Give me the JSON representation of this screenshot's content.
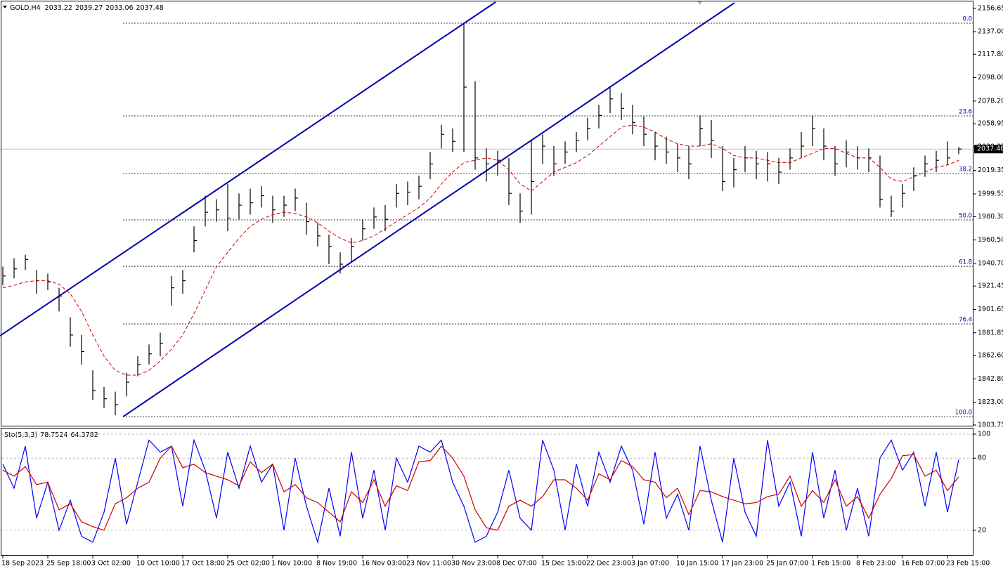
{
  "chart_data": [
    {
      "type": "ohlc",
      "symbol": "GOLD,H4",
      "open": 2033.22,
      "categories": [
        "18 Sep 2023",
        null,
        null,
        null,
        "25 Sep 18:00",
        null,
        null,
        null,
        "3 Oct 02:00",
        null,
        null,
        null,
        "10 Oct 10:00",
        null,
        null,
        null,
        "17 Oct 18:00",
        null,
        null,
        null,
        "25 Oct 02:00",
        null,
        null,
        null,
        "1 Nov 10:00",
        null,
        null,
        null,
        "8 Nov 19:00",
        null,
        null,
        null,
        "16 Nov 03:00",
        null,
        null,
        null,
        "23 Nov 11:00",
        null,
        null,
        null,
        "30 Nov 23:00",
        null,
        null,
        null,
        "8 Dec 07:00",
        null,
        null,
        null,
        "15 Dec 15:00",
        null,
        null,
        null,
        "22 Dec 23:00",
        null,
        null,
        null,
        "3 Jan 07:00",
        null,
        null,
        null,
        "10 Jan 15:00",
        null,
        null,
        null,
        "17 Jan 23:00",
        null,
        null,
        null,
        "25 Jan 07:00",
        null,
        null,
        null,
        "1 Feb 15:00",
        null,
        null,
        null,
        "8 Feb 23:00",
        null,
        null,
        null,
        "16 Feb 07:00",
        null,
        null,
        null,
        "23 Feb 15:00",
        null
      ],
      "high": [
        1938,
        1945,
        1948,
        1935,
        1932,
        1920,
        1895,
        1880,
        1850,
        1836,
        1832,
        1848,
        1862,
        1872,
        1882,
        1930,
        1935,
        1972,
        1998,
        1995,
        2008,
        2000,
        2004,
        2006,
        1998,
        1998,
        2004,
        1992,
        1975,
        1965,
        1950,
        1962,
        1978,
        1988,
        1990,
        2008,
        2010,
        2015,
        2035,
        2058,
        2055,
        2144,
        2095,
        2038,
        2036,
        2030,
        2000,
        2045,
        2050,
        2040,
        2044,
        2052,
        2064,
        2075,
        2090,
        2085,
        2075,
        2065,
        2052,
        2048,
        2042,
        2040,
        2066,
        2062,
        2040,
        2030,
        2040,
        2036,
        2035,
        2030,
        2038,
        2052,
        2066,
        2055,
        2040,
        2045,
        2040,
        2038,
        2032,
        1998,
        2008,
        2022,
        2032,
        2036,
        2044,
        2039.27
      ],
      "low": [
        1922,
        1928,
        1935,
        1915,
        1918,
        1900,
        1870,
        1855,
        1825,
        1818,
        1812,
        1828,
        1845,
        1855,
        1862,
        1905,
        1915,
        1950,
        1972,
        1976,
        1968,
        1978,
        1982,
        1988,
        1975,
        1980,
        1985,
        1965,
        1955,
        1940,
        1932,
        1942,
        1960,
        1970,
        1968,
        1988,
        1990,
        1995,
        2012,
        2038,
        2035,
        2035,
        2020,
        2010,
        2015,
        1990,
        1975,
        1982,
        2025,
        2015,
        2025,
        2035,
        2045,
        2055,
        2068,
        2062,
        2050,
        2040,
        2028,
        2025,
        2018,
        2012,
        2040,
        2030,
        2002,
        2005,
        2018,
        2012,
        2010,
        2008,
        2020,
        2030,
        2040,
        2028,
        2015,
        2022,
        2020,
        2018,
        1988,
        1980,
        1988,
        2002,
        2014,
        2018,
        2024,
        2033.06
      ],
      "close": [
        1930,
        1936,
        1944,
        1926,
        1925,
        1913,
        1880,
        1866,
        1833,
        1826,
        1821,
        1840,
        1855,
        1864,
        1873,
        1920,
        1926,
        1960,
        1984,
        1986,
        1979,
        1990,
        1992,
        1998,
        1986,
        1990,
        1996,
        1976,
        1964,
        1955,
        1940,
        1955,
        1970,
        1980,
        1978,
        2000,
        2001,
        2006,
        2025,
        2050,
        2044,
        2090,
        2030,
        2025,
        2028,
        2000,
        1985,
        2010,
        2040,
        2025,
        2035,
        2045,
        2055,
        2066,
        2080,
        2072,
        2060,
        2050,
        2040,
        2035,
        2030,
        2025,
        2055,
        2045,
        2010,
        2020,
        2030,
        2025,
        2025,
        2018,
        2030,
        2040,
        2055,
        2040,
        2025,
        2035,
        2030,
        2030,
        1995,
        1985,
        2000,
        2015,
        2025,
        2028,
        2030,
        2037.48
      ],
      "ma": [
        1920,
        1922,
        1925,
        1926,
        1926,
        1923,
        1915,
        1900,
        1880,
        1862,
        1850,
        1846,
        1846,
        1850,
        1858,
        1868,
        1880,
        1898,
        1918,
        1938,
        1950,
        1962,
        1972,
        1978,
        1982,
        1984,
        1983,
        1980,
        1975,
        1968,
        1962,
        1958,
        1960,
        1964,
        1970,
        1976,
        1982,
        1988,
        1996,
        2008,
        2018,
        2026,
        2028,
        2030,
        2028,
        2020,
        2008,
        2002,
        2010,
        2018,
        2022,
        2026,
        2032,
        2040,
        2048,
        2056,
        2058,
        2056,
        2052,
        2046,
        2042,
        2040,
        2040,
        2042,
        2038,
        2032,
        2030,
        2030,
        2028,
        2026,
        2026,
        2030,
        2034,
        2038,
        2038,
        2034,
        2030,
        2030,
        2022,
        2012,
        2010,
        2014,
        2018,
        2022,
        2024,
        2028
      ],
      "bar_color": "#000000",
      "ma_color": "#cc0000",
      "ylim": [
        1803.75,
        2156.65
      ],
      "yticks": [
        {
          "value": 2156.65,
          "label": "2156.65"
        },
        {
          "value": 2137.0,
          "label": "2137.00"
        },
        {
          "value": 2117.8,
          "label": "2117.80"
        },
        {
          "value": 2098.0,
          "label": "2098.00"
        },
        {
          "value": 2078.2,
          "label": "2078.20"
        },
        {
          "value": 2058.95,
          "label": "2058.95"
        },
        {
          "value": 2039.35,
          "label": "2039.35"
        },
        {
          "value": 2019.35,
          "label": "2019.35"
        },
        {
          "value": 1999.55,
          "label": "1999.55"
        },
        {
          "value": 1980.3,
          "label": "1980.30"
        },
        {
          "value": 1960.5,
          "label": "1960.50"
        },
        {
          "value": 1940.7,
          "label": "1940.70"
        },
        {
          "value": 1921.45,
          "label": "1921.45"
        },
        {
          "value": 1901.65,
          "label": "1901.65"
        },
        {
          "value": 1881.85,
          "label": "1881.85"
        },
        {
          "value": 1862.6,
          "label": "1862.60"
        },
        {
          "value": 1842.8,
          "label": "1842.80"
        },
        {
          "value": 1823.0,
          "label": "1823.00"
        },
        {
          "value": 1803.75,
          "label": "1803.75"
        }
      ],
      "fib_levels": [
        {
          "label": "0.0",
          "value": 2144.15
        },
        {
          "label": "23.6",
          "value": 2065.6
        },
        {
          "label": "38.2",
          "value": 2016.8
        },
        {
          "label": "50.0",
          "value": 1977.5
        },
        {
          "label": "61.8",
          "value": 1938.2
        },
        {
          "label": "76.4",
          "value": 1889.4
        },
        {
          "label": "100.0",
          "value": 1810.9
        }
      ],
      "channel_color": "#0000aa",
      "channels": [
        {
          "x": [
            -0.25,
            43.81
          ],
          "y": [
            1879.3,
            2162.0
          ]
        },
        {
          "x": [
            10.69,
            65.06
          ],
          "y": [
            1810.8,
            2161.4
          ]
        }
      ]
    },
    {
      "type": "line",
      "title": "Sto(5,3,3)",
      "series": [
        {
          "color": "#0000ff",
          "values": [
            75,
            55,
            90,
            30,
            60,
            20,
            45,
            15,
            10,
            35,
            80,
            25,
            60,
            95,
            85,
            90,
            40,
            95,
            70,
            30,
            85,
            55,
            90,
            60,
            75,
            20,
            80,
            40,
            10,
            55,
            15,
            85,
            30,
            70,
            20,
            80,
            60,
            90,
            85,
            95,
            60,
            40,
            10,
            15,
            35,
            70,
            30,
            20,
            95,
            70,
            20,
            75,
            40,
            85,
            60,
            90,
            70,
            25,
            85,
            30,
            50,
            20,
            90,
            45,
            10,
            80,
            35,
            15,
            95,
            40,
            60,
            15,
            85,
            30,
            70,
            20,
            55,
            15,
            80,
            95,
            70,
            85,
            40,
            85,
            35,
            78.7524
          ]
        },
        {
          "color": "#cc0000",
          "values": [
            70,
            65,
            73,
            58,
            60,
            37,
            42,
            27,
            23,
            20,
            42,
            47,
            55,
            60,
            80,
            90,
            72,
            75,
            68,
            65,
            62,
            57,
            77,
            68,
            75,
            52,
            58,
            47,
            43,
            35,
            27,
            52,
            43,
            62,
            40,
            57,
            53,
            77,
            78,
            90,
            80,
            65,
            37,
            22,
            20,
            40,
            45,
            40,
            48,
            62,
            62,
            55,
            45,
            67,
            62,
            78,
            73,
            62,
            60,
            47,
            55,
            33,
            53,
            52,
            48,
            45,
            42,
            43,
            48,
            50,
            65,
            40,
            53,
            43,
            62,
            40,
            48,
            30,
            50,
            63,
            82,
            83,
            65,
            70,
            53,
            64.3782
          ]
        }
      ],
      "ylim": [
        0,
        100
      ],
      "yticks": [
        20,
        80,
        100
      ]
    }
  ]
}
